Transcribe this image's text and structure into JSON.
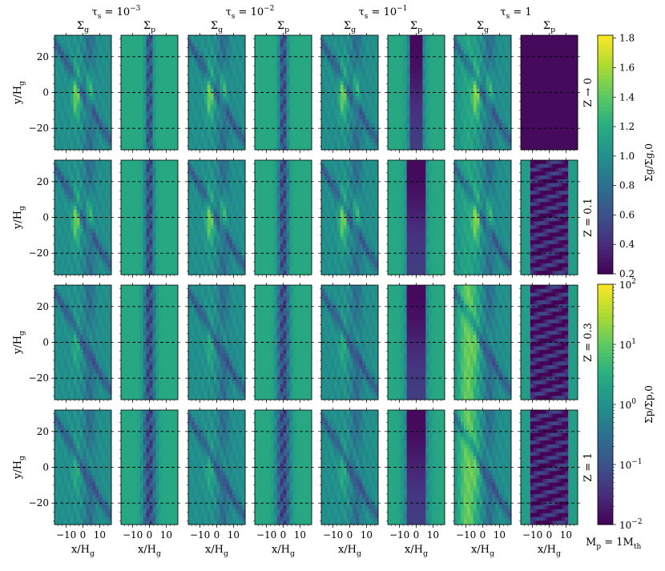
{
  "chart_data": {
    "type": "heatmap",
    "title": "",
    "columns": [
      {
        "tau_label": "τ_s = 10^-3",
        "tau_base": "τ",
        "tau_sub": "s",
        "tau_eq": " = 10",
        "tau_exp": "−3",
        "panels": [
          "Σg",
          "Σp"
        ]
      },
      {
        "tau_label": "τ_s = 10^-2",
        "tau_base": "τ",
        "tau_sub": "s",
        "tau_eq": " = 10",
        "tau_exp": "−2",
        "panels": [
          "Σg",
          "Σp"
        ]
      },
      {
        "tau_label": "τ_s = 10^-1",
        "tau_base": "τ",
        "tau_sub": "s",
        "tau_eq": " = 10",
        "tau_exp": "−1",
        "panels": [
          "Σg",
          "Σp"
        ]
      },
      {
        "tau_label": "τ_s = 1",
        "tau_base": "τ",
        "tau_sub": "s",
        "tau_eq": " = 1",
        "tau_exp": "",
        "panels": [
          "Σg",
          "Σp"
        ]
      }
    ],
    "panel_header": {
      "gas": {
        "base": "Σ",
        "sub": "g"
      },
      "particle": {
        "base": "Σ",
        "sub": "p"
      }
    },
    "rows": [
      {
        "label": "Z → 0"
      },
      {
        "label": "Z = 0.1"
      },
      {
        "label": "Z = 0.3"
      },
      {
        "label": "Z = 1"
      }
    ],
    "xaxis": {
      "label_base": "x/H",
      "label_sub": "g",
      "range": [
        -17,
        17
      ],
      "ticks": [
        -10,
        0,
        10
      ],
      "tick_labels": [
        "−10",
        "0",
        "10"
      ]
    },
    "yaxis": {
      "label_base": "y/H",
      "label_sub": "g",
      "range": [
        -32,
        32
      ],
      "ticks": [
        -20,
        0,
        20
      ],
      "tick_labels": [
        "−20",
        "0",
        "20"
      ]
    },
    "colorbar_gas": {
      "label_base": "Σg/Σg,0",
      "scale": "linear",
      "range": [
        0.2,
        1.82
      ],
      "ticks": [
        0.2,
        0.4,
        0.6,
        0.8,
        1.0,
        1.2,
        1.4,
        1.6,
        1.8
      ],
      "tick_labels": [
        "0.2",
        "0.4",
        "0.6",
        "0.8",
        "1.0",
        "1.2",
        "1.4",
        "1.6",
        "1.8"
      ],
      "colormap": "viridis"
    },
    "colorbar_particle": {
      "label_base": "Σp/Σp,0",
      "scale": "log",
      "range": [
        0.01,
        100
      ],
      "ticks": [
        0.01,
        0.1,
        1,
        10,
        100
      ],
      "tick_labels": [
        {
          "b": "10",
          "e": "−2"
        },
        {
          "b": "10",
          "e": "−1"
        },
        {
          "b": "10",
          "e": "0"
        },
        {
          "b": "10",
          "e": "1"
        },
        {
          "b": "10",
          "e": "2"
        }
      ],
      "colormap": "viridis"
    },
    "planet_mass_label": "M_p = 1 M_th",
    "planet_mass": {
      "base1": "M",
      "sub1": "p",
      "eq": " = 1",
      "base2": "M",
      "sub2": "th"
    }
  },
  "colors": {
    "viridis": [
      "#440154",
      "#472d7b",
      "#3b528b",
      "#2c728e",
      "#21918c",
      "#28ae80",
      "#5ec962",
      "#addc30",
      "#fde725"
    ],
    "background_gas": "#25898e",
    "dashed_line": "#000000"
  }
}
